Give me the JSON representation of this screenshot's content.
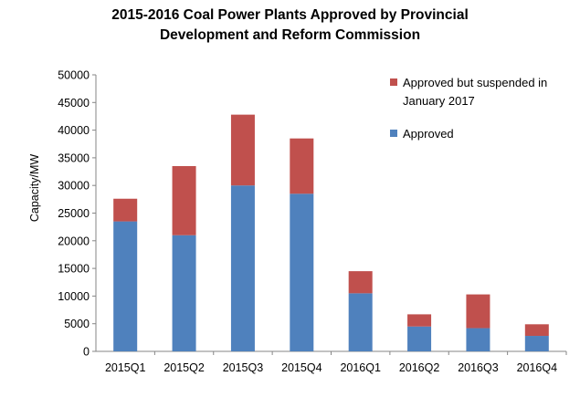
{
  "colors": {
    "approved": "#4F81BD",
    "suspended": "#C0504D",
    "axis": "#868686"
  },
  "chart_data": {
    "type": "bar",
    "stacked": true,
    "title_line1": "2015-2016  Coal Power Plants Approved by Provincial",
    "title_line2": "Development and Reform Commission",
    "xlabel": "",
    "ylabel": "Capacity/MW",
    "ylim": [
      0,
      50000
    ],
    "yticks": [
      0,
      5000,
      10000,
      15000,
      20000,
      25000,
      30000,
      35000,
      40000,
      45000,
      50000
    ],
    "grid": false,
    "legend_position": "top-right",
    "categories": [
      "2015Q1",
      "2015Q2",
      "2015Q3",
      "2015Q4",
      "2016Q1",
      "2016Q2",
      "2016Q3",
      "2016Q4"
    ],
    "series": [
      {
        "name": "Approved",
        "values": [
          23500,
          21000,
          30000,
          28500,
          10500,
          4500,
          4200,
          2800
        ]
      },
      {
        "name": "Approved but suspended in January 2017",
        "values": [
          4100,
          12500,
          12800,
          10000,
          4000,
          2200,
          6100,
          2100
        ]
      }
    ],
    "legend": [
      {
        "lines": [
          "Approved but suspended in",
          "January 2017"
        ],
        "series_index": 1
      },
      {
        "lines": [
          "Approved"
        ],
        "series_index": 0
      }
    ]
  }
}
